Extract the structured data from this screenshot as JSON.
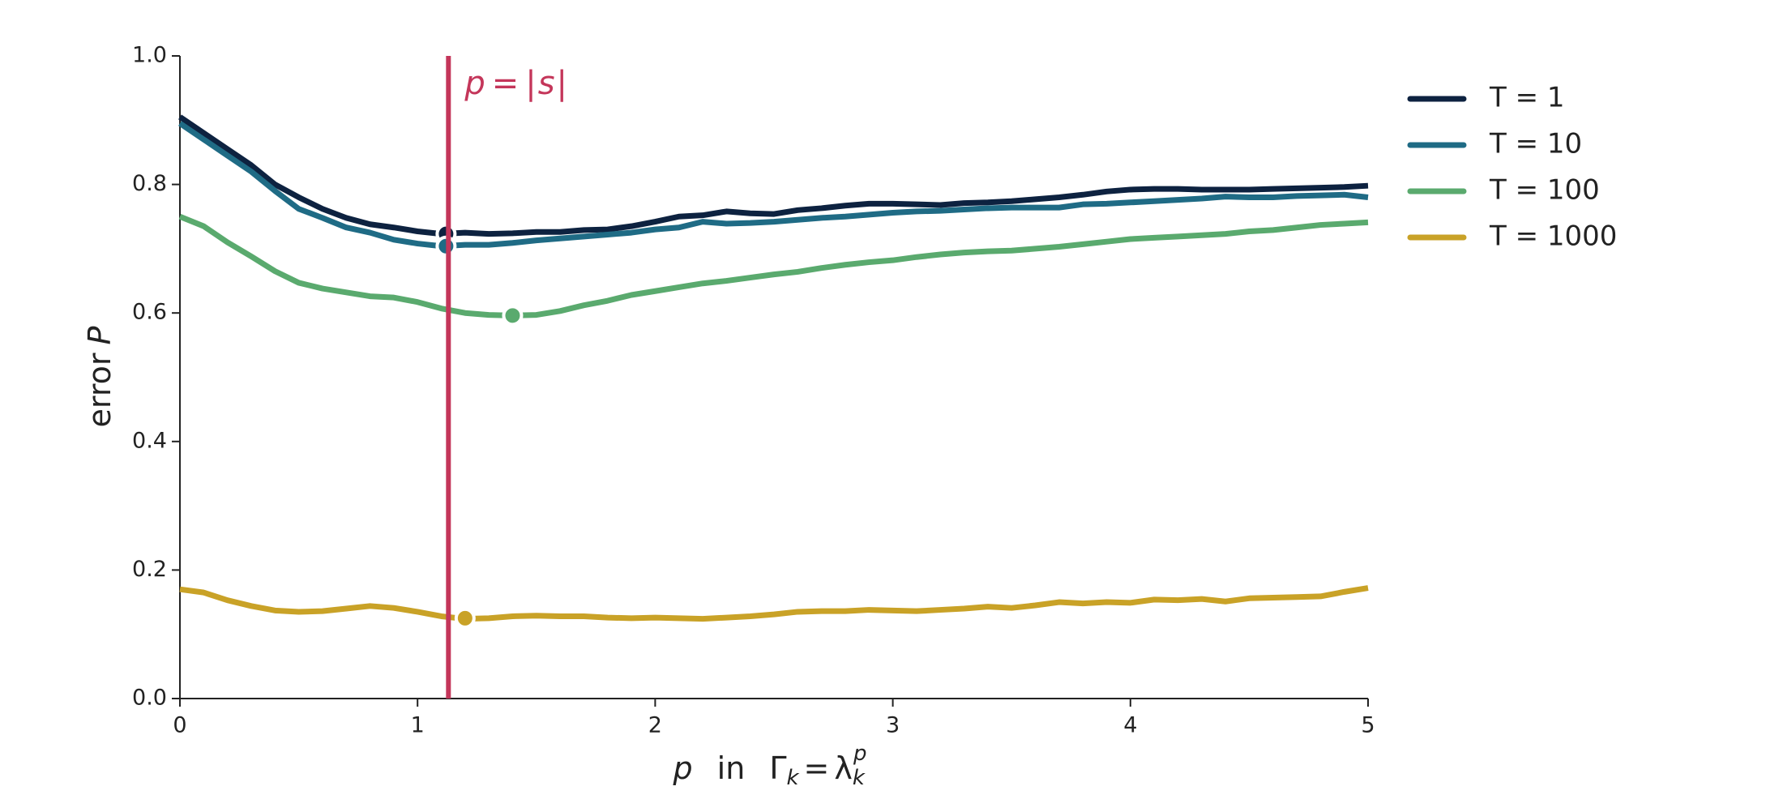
{
  "chart_data": {
    "type": "line",
    "xlabel": [
      "p",
      "in",
      "Γ",
      "k",
      "=",
      "λ",
      "k",
      "p"
    ],
    "ylabel": [
      "error",
      "P"
    ],
    "x": [
      0,
      0.1,
      0.2,
      0.3,
      0.4,
      0.5,
      0.6,
      0.7,
      0.8,
      0.9,
      1,
      1.1,
      1.2,
      1.3,
      1.4,
      1.5,
      1.6,
      1.7,
      1.8,
      1.9,
      2,
      2.1,
      2.2,
      2.3,
      2.4,
      2.5,
      2.6,
      2.7,
      2.8,
      2.9,
      3,
      3.1,
      3.2,
      3.3,
      3.4,
      3.5,
      3.6,
      3.7,
      3.8,
      3.9,
      4,
      4.1,
      4.2,
      4.3,
      4.4,
      4.5,
      4.6,
      4.7,
      4.8,
      4.9,
      5
    ],
    "series": [
      {
        "name": "T = 1",
        "color": "#0d2240",
        "min_point": {
          "x": 1.12,
          "y": 0.723
        },
        "values": [
          0.905,
          0.88,
          0.855,
          0.83,
          0.8,
          0.78,
          0.762,
          0.748,
          0.738,
          0.733,
          0.727,
          0.723,
          0.725,
          0.723,
          0.724,
          0.726,
          0.726,
          0.729,
          0.73,
          0.735,
          0.742,
          0.75,
          0.752,
          0.758,
          0.755,
          0.754,
          0.76,
          0.763,
          0.767,
          0.77,
          0.77,
          0.769,
          0.768,
          0.771,
          0.772,
          0.774,
          0.777,
          0.78,
          0.784,
          0.789,
          0.792,
          0.793,
          0.793,
          0.792,
          0.792,
          0.792,
          0.793,
          0.794,
          0.795,
          0.796,
          0.798
        ]
      },
      {
        "name": "T = 10",
        "color": "#1f6b85",
        "min_point": {
          "x": 1.12,
          "y": 0.704
        },
        "values": [
          0.895,
          0.87,
          0.845,
          0.82,
          0.79,
          0.762,
          0.748,
          0.733,
          0.725,
          0.714,
          0.708,
          0.704,
          0.706,
          0.706,
          0.709,
          0.713,
          0.716,
          0.719,
          0.722,
          0.725,
          0.73,
          0.733,
          0.742,
          0.739,
          0.74,
          0.742,
          0.745,
          0.748,
          0.75,
          0.753,
          0.756,
          0.758,
          0.759,
          0.761,
          0.763,
          0.764,
          0.764,
          0.764,
          0.769,
          0.77,
          0.772,
          0.774,
          0.776,
          0.778,
          0.781,
          0.78,
          0.78,
          0.782,
          0.783,
          0.784,
          0.78
        ]
      },
      {
        "name": "T = 100",
        "color": "#5aaa6e",
        "min_point": {
          "x": 1.4,
          "y": 0.596
        },
        "values": [
          0.75,
          0.735,
          0.71,
          0.688,
          0.665,
          0.647,
          0.638,
          0.632,
          0.626,
          0.624,
          0.617,
          0.607,
          0.6,
          0.597,
          0.596,
          0.597,
          0.603,
          0.612,
          0.619,
          0.628,
          0.634,
          0.64,
          0.646,
          0.65,
          0.655,
          0.66,
          0.664,
          0.67,
          0.675,
          0.679,
          0.682,
          0.687,
          0.691,
          0.694,
          0.696,
          0.697,
          0.7,
          0.703,
          0.707,
          0.711,
          0.715,
          0.717,
          0.719,
          0.721,
          0.723,
          0.727,
          0.729,
          0.733,
          0.737,
          0.739,
          0.741
        ]
      },
      {
        "name": "T = 1000",
        "color": "#c9a227",
        "min_point": {
          "x": 1.2,
          "y": 0.125
        },
        "values": [
          0.17,
          0.165,
          0.153,
          0.144,
          0.137,
          0.135,
          0.136,
          0.14,
          0.144,
          0.141,
          0.135,
          0.128,
          0.124,
          0.125,
          0.128,
          0.129,
          0.128,
          0.128,
          0.126,
          0.125,
          0.126,
          0.125,
          0.124,
          0.126,
          0.128,
          0.131,
          0.135,
          0.136,
          0.136,
          0.138,
          0.137,
          0.136,
          0.138,
          0.14,
          0.143,
          0.141,
          0.145,
          0.15,
          0.148,
          0.15,
          0.149,
          0.154,
          0.153,
          0.155,
          0.151,
          0.156,
          0.157,
          0.158,
          0.159,
          0.166,
          0.172
        ]
      }
    ],
    "vline": {
      "x": 1.13,
      "color": "#c4365a",
      "label": [
        "p",
        "=",
        "|",
        "s",
        "|"
      ]
    },
    "xlim": [
      0,
      5
    ],
    "xticks": [
      0,
      1,
      2,
      3,
      4,
      5
    ],
    "ylim": [
      0,
      1
    ],
    "yticks": [
      {
        "value": 0,
        "label": "0.0"
      },
      0.2,
      0.4,
      0.6,
      0.8,
      {
        "value": 1,
        "label": "1.0"
      }
    ],
    "grid": false,
    "legend": "outside-right"
  }
}
